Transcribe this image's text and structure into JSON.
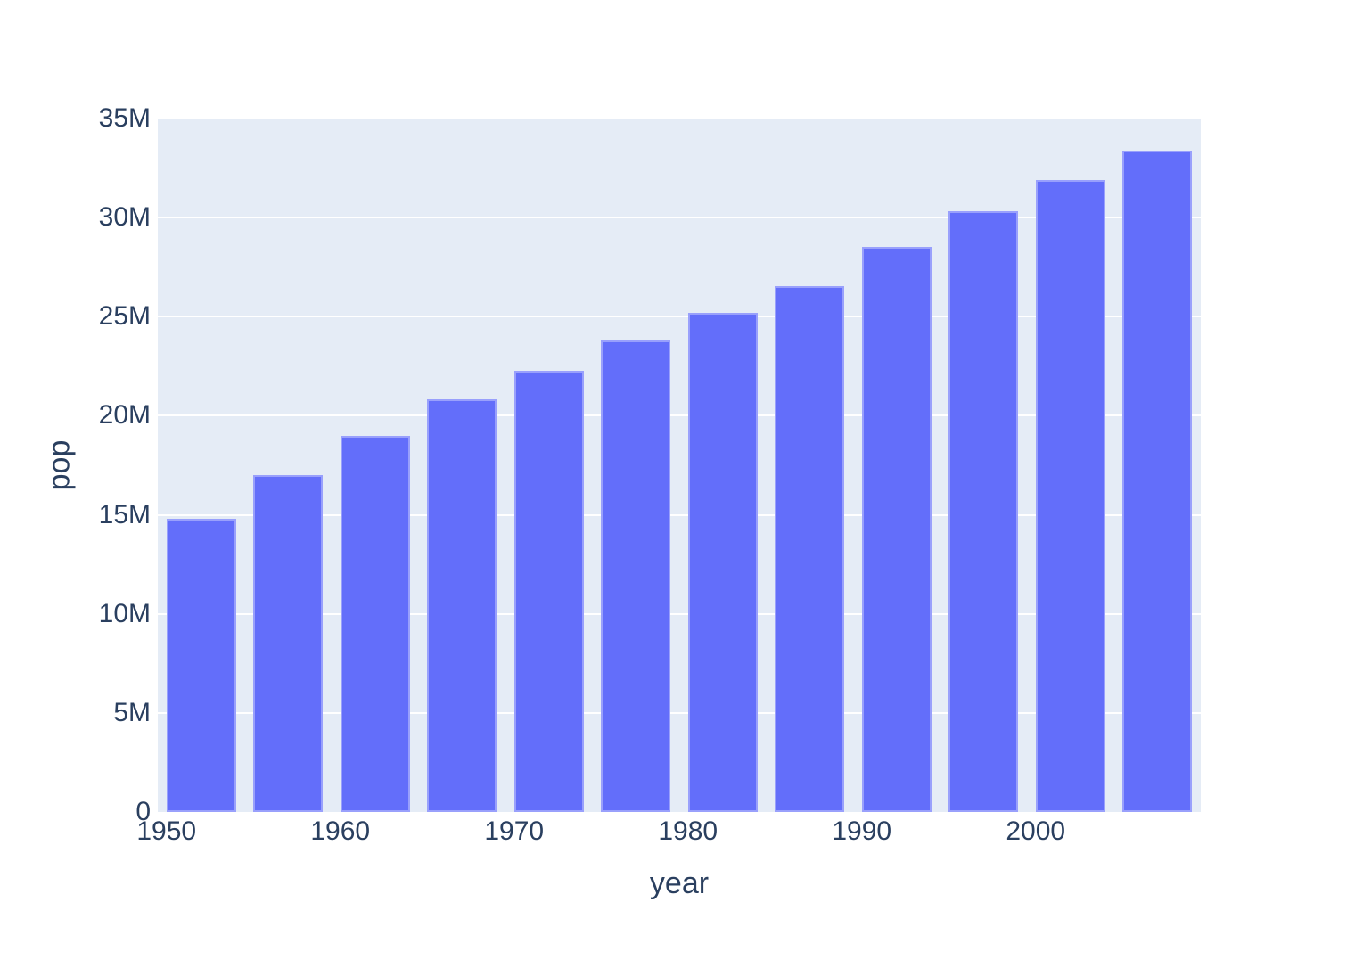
{
  "chart_data": {
    "type": "bar",
    "title": "",
    "xlabel": "year",
    "ylabel": "pop",
    "x": [
      1952,
      1957,
      1962,
      1967,
      1972,
      1977,
      1982,
      1987,
      1992,
      1997,
      2002,
      2007
    ],
    "values": [
      14785584,
      17010154,
      18985849,
      20819767,
      22284500,
      23796400,
      25201900,
      26549700,
      28523502,
      30305843,
      31902268,
      33390141
    ],
    "series_name": "pop",
    "xlim": [
      1949.5,
      2009.5
    ],
    "ylim": [
      0,
      35000000
    ],
    "bar_width_years": 4,
    "x_tick_values": [
      1950,
      1960,
      1970,
      1980,
      1990,
      2000
    ],
    "x_tick_labels": [
      "1950",
      "1960",
      "1970",
      "1980",
      "1990",
      "2000"
    ],
    "y_tick_values": [
      0,
      5000000,
      10000000,
      15000000,
      20000000,
      25000000,
      30000000,
      35000000
    ],
    "y_tick_labels": [
      "0",
      "5M",
      "10M",
      "15M",
      "20M",
      "25M",
      "30M",
      "35M"
    ],
    "grid": true,
    "legend": "none",
    "colors": {
      "bar": "#636efa",
      "plot_background": "#e5ecf6",
      "gridline": "#ffffff",
      "text": "#2a3f5f",
      "page_background": "#ffffff"
    }
  }
}
